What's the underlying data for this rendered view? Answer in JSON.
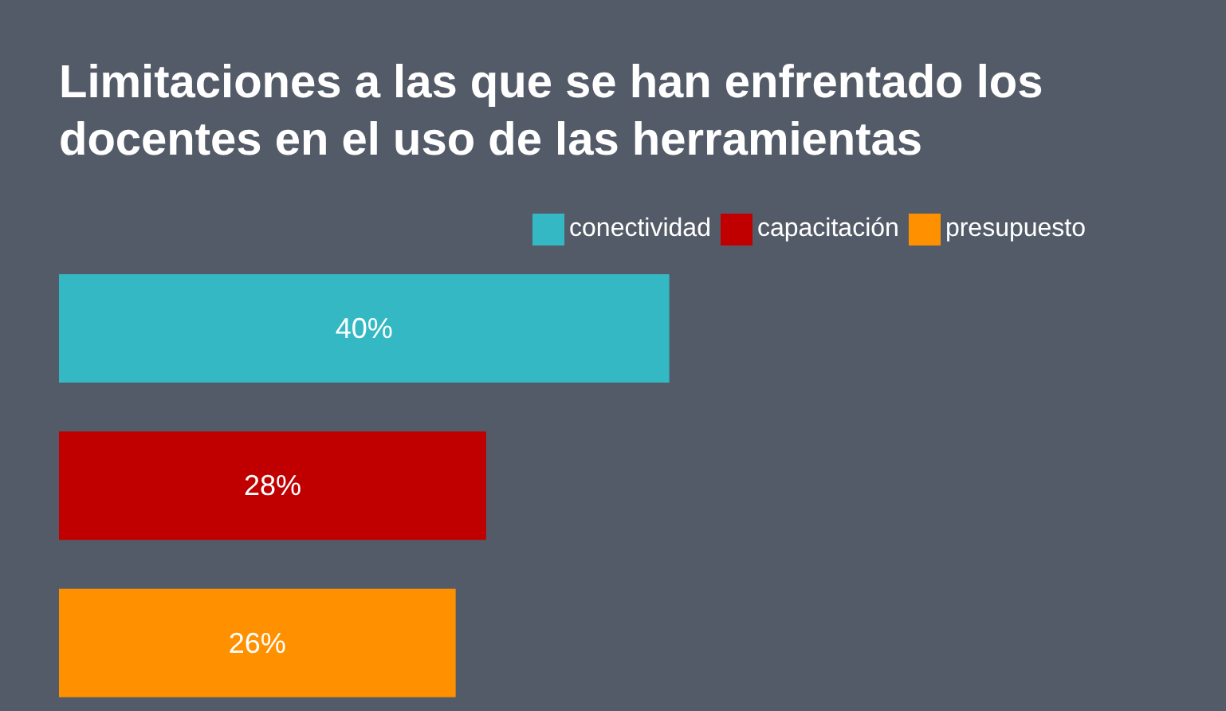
{
  "chart_data": {
    "type": "bar",
    "orientation": "horizontal",
    "stacked": true,
    "title": "Limitaciones a las que se han enfrentado los docentes en el uso de las herramientas",
    "categories": [
      null,
      null,
      null
    ],
    "series": [
      {
        "name": "conectividad",
        "color": "#33b8c4",
        "values": [
          40,
          null,
          null
        ],
        "value_labels": [
          "40%",
          null,
          null
        ]
      },
      {
        "name": "capacitación",
        "color": "#c00000",
        "values": [
          null,
          28,
          null
        ],
        "value_labels": [
          null,
          "28%",
          null
        ]
      },
      {
        "name": "presupuesto",
        "color": "#ff9000",
        "values": [
          null,
          null,
          26
        ],
        "value_labels": [
          null,
          null,
          "26%"
        ]
      }
    ],
    "legend": "top right"
  }
}
